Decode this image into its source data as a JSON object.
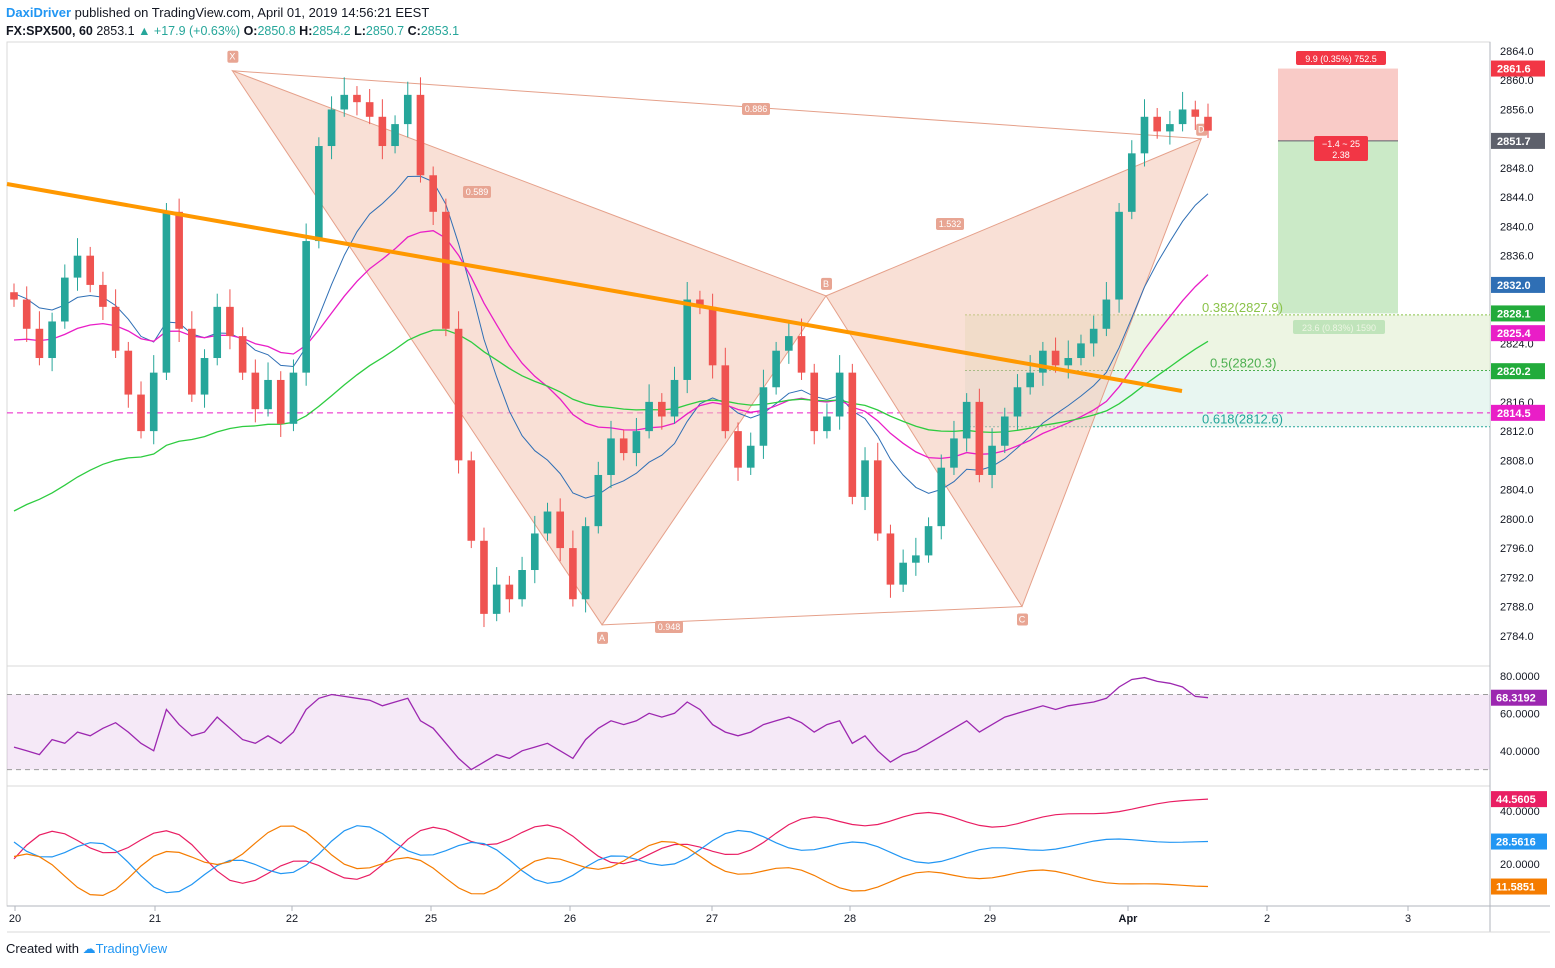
{
  "header": {
    "author": "DaxiDriver",
    "published": "published on TradingView.com, April 01, 2019 14:56:21 EEST",
    "symbol": "FX:SPX500, 60",
    "last": "2853.1",
    "change": "▲ +17.9 (+0.63%)",
    "o_label": "O:",
    "o": "2850.8",
    "h_label": "H:",
    "h": "2854.2",
    "l_label": "L:",
    "l": "2850.7",
    "c_label": "C:",
    "c": "2853.1"
  },
  "footer": {
    "created": "Created with",
    "brand": "TradingView"
  },
  "colors": {
    "up": "#26a69a",
    "down": "#ef5350",
    "pattern_fill": "#f4c7b5",
    "pattern_stroke": "#e5a08a",
    "trendline": "#ff9800",
    "ma_blue": "#2f6fb5",
    "ma_magenta": "#e91ec7",
    "ma_green": "#2ecc40",
    "rsi": "#9c27b0",
    "adx_red": "#e91e63",
    "di_blue": "#2196f3",
    "di_orange": "#f57c00"
  },
  "chart_data": [
    {
      "type": "candlestick",
      "symbol": "FX:SPX500",
      "interval": "60",
      "ylim": [
        2782,
        2865
      ],
      "y_ticks": [
        "2864.0",
        "2860.0",
        "2856.0",
        "2852.0",
        "2848.0",
        "2844.0",
        "2840.0",
        "2836.0",
        "2832.0",
        "2828.0",
        "2824.0",
        "2820.0",
        "2816.0",
        "2812.0",
        "2808.0",
        "2804.0",
        "2800.0",
        "2796.0",
        "2792.0",
        "2788.0",
        "2784.0"
      ],
      "x_ticks": [
        "20",
        "21",
        "22",
        "25",
        "26",
        "27",
        "28",
        "29",
        "Apr",
        "2",
        "3"
      ],
      "closes": [
        2830,
        2826,
        2822,
        2827,
        2833,
        2836,
        2832,
        2829,
        2823,
        2817,
        2812,
        2820,
        2842,
        2826,
        2817,
        2822,
        2829,
        2825,
        2820,
        2815,
        2819,
        2813,
        2820,
        2838,
        2851,
        2856,
        2858,
        2857,
        2855,
        2851,
        2854,
        2858,
        2847,
        2842,
        2826,
        2808,
        2797,
        2787,
        2791,
        2789,
        2793,
        2798,
        2801,
        2796,
        2789,
        2799,
        2806,
        2811,
        2809,
        2812,
        2816,
        2814,
        2819,
        2830,
        2829,
        2821,
        2812,
        2807,
        2810,
        2818,
        2823,
        2825,
        2820,
        2812,
        2814,
        2820,
        2803,
        2808,
        2798,
        2791,
        2794,
        2795,
        2799,
        2807,
        2811,
        2816,
        2806,
        2810,
        2814,
        2818,
        2820,
        2823,
        2821,
        2822,
        2824,
        2826,
        2830,
        2842,
        2850,
        2855,
        2853,
        2854,
        2856,
        2855,
        2853.1
      ],
      "price_tags": [
        {
          "label": "2861.6",
          "value": 2861.6,
          "color": "#f23645"
        },
        {
          "label": "2851.7",
          "value": 2851.7,
          "color": "#5d606b"
        },
        {
          "label": "2832.0",
          "value": 2832.0,
          "color": "#2f6fb5"
        },
        {
          "label": "2828.1",
          "value": 2828.1,
          "color": "#22ab3b"
        },
        {
          "label": "2825.4",
          "value": 2825.4,
          "color": "#e91ec7"
        },
        {
          "label": "2820.2",
          "value": 2820.2,
          "color": "#22ab3b"
        },
        {
          "label": "2814.5",
          "value": 2814.5,
          "color": "#e91ec7"
        }
      ],
      "pattern_points": [
        {
          "label": "X",
          "t": 39,
          "price": 2861.3
        },
        {
          "label": "A",
          "t": 105,
          "price": 2785.5
        },
        {
          "label": "B",
          "t": 145,
          "price": 2830.5
        },
        {
          "label": "C",
          "t": 180,
          "price": 2788.0
        },
        {
          "label": "D",
          "t": 212,
          "price": 2852.0
        }
      ],
      "pattern_ratios": [
        {
          "label": "0.886",
          "value": 0.886
        },
        {
          "label": "0.589",
          "value": 0.589
        },
        {
          "label": "1.532",
          "value": 1.532
        },
        {
          "label": "0.948",
          "value": 0.948
        }
      ],
      "fib_levels": [
        {
          "label": "0.382(2827.9)",
          "value": 2827.9,
          "color": "#8bc34a"
        },
        {
          "label": "0.5(2820.3)",
          "value": 2820.3,
          "color": "#4caf50"
        },
        {
          "label": "0.618(2812.6)",
          "value": 2812.6,
          "color": "#26a69a"
        }
      ],
      "dashed_level": 2814.5,
      "position": {
        "entry": 2851.7,
        "stop": 2861.6,
        "target": 2828.1,
        "stop_label": "9.9 (0.35%) 752.5",
        "target_label": "23.6 (0.83%) 1590",
        "pnl_label": "−1.4 ~ 25",
        "ratio_label": "2.38"
      }
    },
    {
      "type": "line",
      "name": "RSI",
      "ylim": [
        25,
        82
      ],
      "y_ticks": [
        "80.0000",
        "60.0000",
        "40.0000"
      ],
      "bands": [
        70,
        30
      ],
      "last_label": "68.3192",
      "values": [
        42,
        40,
        38,
        46,
        44,
        50,
        48,
        52,
        55,
        50,
        44,
        40,
        62,
        54,
        48,
        50,
        58,
        52,
        46,
        44,
        48,
        44,
        50,
        62,
        68,
        70,
        69,
        68,
        67,
        64,
        66,
        68,
        56,
        52,
        44,
        36,
        30,
        34,
        38,
        36,
        40,
        42,
        44,
        40,
        36,
        46,
        52,
        56,
        54,
        56,
        60,
        58,
        60,
        66,
        62,
        54,
        50,
        48,
        50,
        54,
        56,
        58,
        55,
        50,
        54,
        56,
        44,
        48,
        40,
        34,
        38,
        40,
        44,
        48,
        52,
        56,
        50,
        54,
        58,
        60,
        62,
        64,
        62,
        64,
        65,
        66,
        68,
        74,
        78,
        79,
        77,
        76,
        74,
        69,
        68.3
      ]
    },
    {
      "type": "line",
      "name": "DMI",
      "ylim": [
        5,
        48
      ],
      "y_ticks": [
        "40.0000",
        "20.0000"
      ],
      "series": [
        {
          "color": "#e91e63",
          "last_label": "44.5605"
        },
        {
          "color": "#2196f3",
          "last_label": "28.5616"
        },
        {
          "color": "#f57c00",
          "last_label": "11.5851"
        }
      ]
    }
  ]
}
